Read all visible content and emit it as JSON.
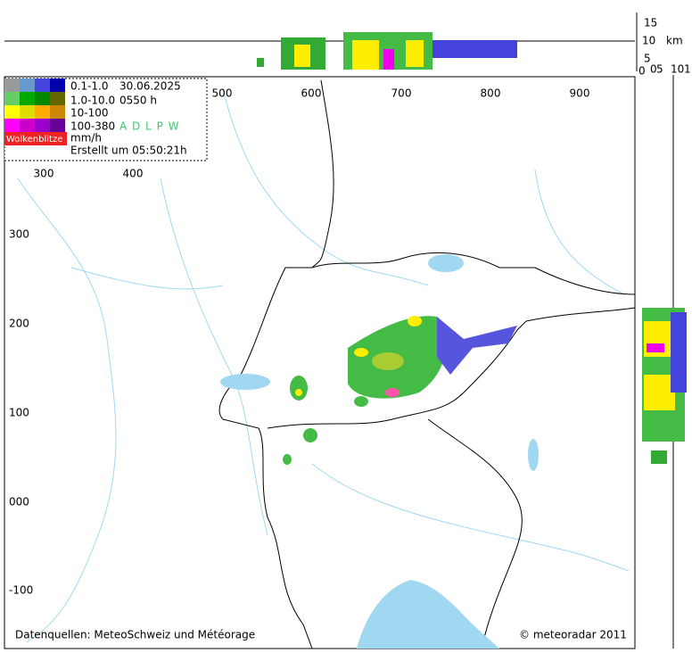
{
  "legend": {
    "classes": [
      "0.1-1.0",
      "1.0-10.0",
      "10-100",
      "100-380"
    ],
    "unit": "mm/h",
    "lightning": "Wolkenblitze",
    "date": "30.06.2025",
    "time": "0550 h",
    "stations": "A D L P W",
    "created": "Erstellt um 05:50:21h"
  },
  "map": {
    "x_ticks_top": [
      "500",
      "600",
      "700",
      "800",
      "900"
    ],
    "x_ticks_inner": [
      "300",
      "400"
    ],
    "y_ticks": [
      "300",
      "200",
      "100",
      "000",
      "-100"
    ]
  },
  "top_profile": {
    "ticks": [
      "15",
      "10",
      "5",
      "0"
    ],
    "unit": "km"
  },
  "right_profile": {
    "ticks": [
      "0",
      "5",
      "10",
      "1"
    ]
  },
  "footer": {
    "sources": "Datenquellen: MeteoSchweiz und Météorage",
    "copyright": "© meteoradar 2011"
  }
}
